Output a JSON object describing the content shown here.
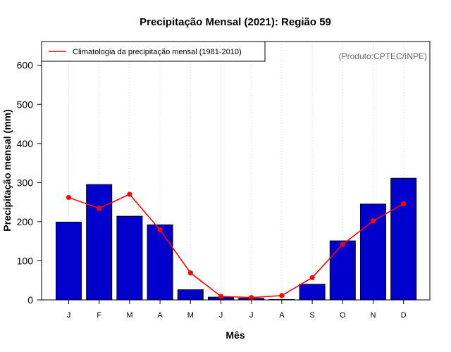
{
  "chart_data": {
    "type": "bar",
    "title": "Precipitação Mensal (2021): Região 59",
    "xlabel": "Mês",
    "ylabel": "Precipitação mensal (mm)",
    "credit": "(Produto:CPTEC/INPE)",
    "categories": [
      "J",
      "F",
      "M",
      "A",
      "M",
      "J",
      "J",
      "A",
      "S",
      "O",
      "N",
      "D"
    ],
    "ylim": [
      0,
      650
    ],
    "yticks": [
      0,
      100,
      200,
      300,
      400,
      500,
      600
    ],
    "grid": "vertical dotted",
    "legend_position": "top-left",
    "series": [
      {
        "name": "Precipitação mensal 2021",
        "type": "bar",
        "color": "#0000cc",
        "values": [
          199,
          295,
          214,
          192,
          26,
          7,
          4,
          1,
          40,
          151,
          245,
          311
        ]
      },
      {
        "name": "Climatologia da precipitação mensal (1981-2010)",
        "type": "line",
        "color": "#ff0000",
        "values": [
          262,
          234,
          270,
          179,
          69,
          9,
          6,
          11,
          57,
          142,
          202,
          246
        ]
      }
    ]
  }
}
